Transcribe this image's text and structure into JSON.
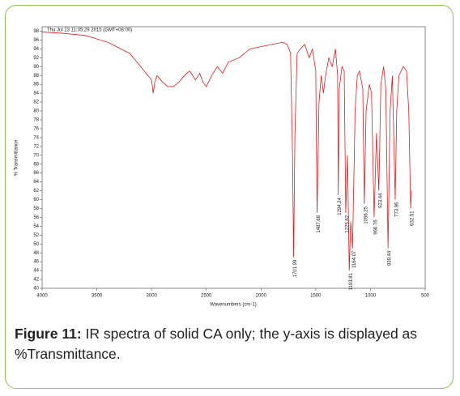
{
  "chart_data": {
    "type": "line",
    "header": "Thu Jul 23 11:05:29 2015 (GMT+08:00)",
    "xlabel": "Wavenumbers (cm-1)",
    "ylabel": "% Transmittance",
    "color": "#e31a1c",
    "xlim": [
      4000,
      500
    ],
    "xticks": [
      4000,
      3500,
      3000,
      2500,
      2000,
      1500,
      1000,
      500
    ],
    "ylim": [
      40,
      99
    ],
    "yticks": [
      40,
      42,
      44,
      46,
      48,
      50,
      52,
      54,
      56,
      58,
      60,
      62,
      64,
      66,
      68,
      70,
      72,
      74,
      76,
      78,
      80,
      82,
      84,
      86,
      88,
      90,
      92,
      94,
      96,
      98
    ],
    "x": [
      4000,
      3800,
      3600,
      3400,
      3200,
      3100,
      3050,
      3000,
      2985,
      2970,
      2950,
      2900,
      2850,
      2800,
      2750,
      2700,
      2650,
      2600,
      2560,
      2530,
      2500,
      2450,
      2400,
      2350,
      2300,
      2200,
      2100,
      2000,
      1900,
      1800,
      1760,
      1730,
      1712,
      1701.99,
      1690,
      1670,
      1640,
      1600,
      1560,
      1530,
      1500,
      1487.68,
      1470,
      1450,
      1430,
      1410,
      1380,
      1350,
      1320,
      1300,
      1294.24,
      1285,
      1260,
      1240,
      1225.62,
      1210,
      1193.81,
      1180,
      1164.07,
      1140,
      1120,
      1100,
      1070,
      1056.25,
      1040,
      1010,
      990,
      966.76,
      945,
      923.44,
      905,
      880,
      860,
      839.44,
      820,
      800,
      773.96,
      760,
      740,
      700,
      670,
      650,
      632.51,
      625
    ],
    "values": [
      97.8,
      97.5,
      97,
      95.5,
      93,
      90,
      88.5,
      87,
      84,
      86.5,
      88,
      86.5,
      85.5,
      85.5,
      86.5,
      88,
      89,
      87,
      88.5,
      86.5,
      85.5,
      88,
      90,
      88.5,
      91,
      92,
      94,
      94.5,
      95,
      95.5,
      95,
      93,
      70,
      47,
      75,
      93,
      94,
      95,
      92,
      94,
      89,
      57,
      82,
      88,
      84,
      88,
      92,
      90,
      94,
      88,
      61,
      85,
      90,
      89,
      57,
      70,
      44,
      55,
      49,
      80,
      88,
      89,
      85,
      59,
      80,
      86,
      84,
      56,
      75,
      62,
      86,
      90,
      85,
      49,
      80,
      88,
      60,
      80,
      88,
      90,
      89,
      80,
      58,
      62
    ],
    "annotations": [
      {
        "label": "1701.99",
        "x": 1701.99,
        "y": 47
      },
      {
        "label": "1487.68",
        "x": 1487.68,
        "y": 57
      },
      {
        "label": "1294.24",
        "x": 1294.24,
        "y": 61
      },
      {
        "label": "1225.62",
        "x": 1225.62,
        "y": 57
      },
      {
        "label": "1193.81",
        "x": 1193.81,
        "y": 44
      },
      {
        "label": "1164.07",
        "x": 1164.07,
        "y": 49
      },
      {
        "label": "1056.25",
        "x": 1056.25,
        "y": 59
      },
      {
        "label": "966.76",
        "x": 966.76,
        "y": 56
      },
      {
        "label": "923.44",
        "x": 923.44,
        "y": 62
      },
      {
        "label": "839.44",
        "x": 839.44,
        "y": 49
      },
      {
        "label": "773.96",
        "x": 773.96,
        "y": 60
      },
      {
        "label": "632.51",
        "x": 632.51,
        "y": 58
      }
    ]
  },
  "caption": {
    "label": "Figure 11:",
    "text": " IR spectra of solid CA only; the y-axis is displayed as %Transmittance."
  }
}
